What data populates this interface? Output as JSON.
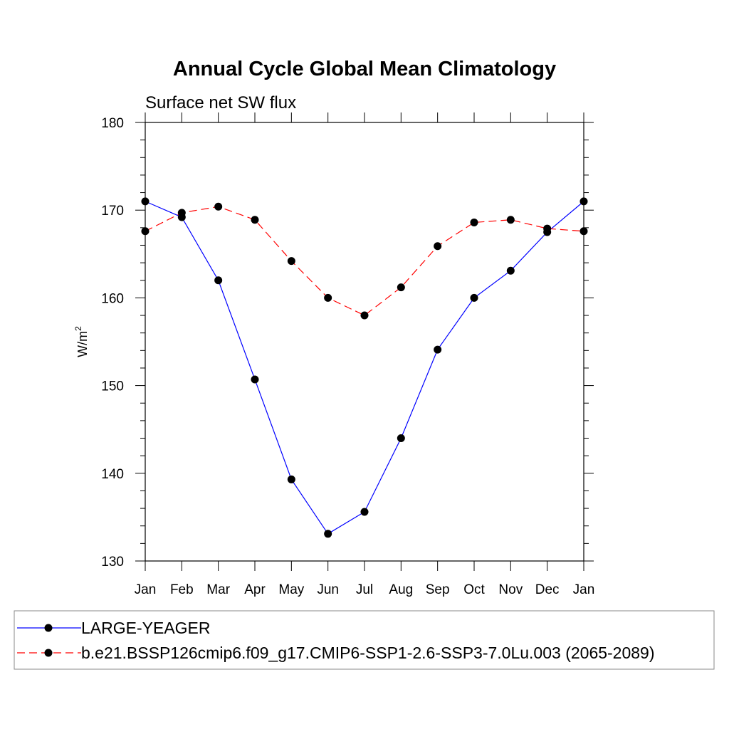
{
  "chart_data": {
    "type": "line",
    "title": "Annual Cycle Global Mean Climatology",
    "subtitle": "Surface net SW flux",
    "ylabel": "W/m",
    "ylabel_superscript": "2",
    "categories": [
      "Jan",
      "Feb",
      "Mar",
      "Apr",
      "May",
      "Jun",
      "Jul",
      "Aug",
      "Sep",
      "Oct",
      "Nov",
      "Dec",
      "Jan"
    ],
    "ylim": [
      130,
      180
    ],
    "yticks": [
      130,
      140,
      150,
      160,
      170,
      180
    ],
    "series": [
      {
        "name": "LARGE-YEAGER",
        "color": "#0000ff",
        "dash": "solid",
        "values": [
          171.0,
          169.2,
          162.0,
          150.7,
          139.3,
          133.1,
          135.6,
          144.0,
          154.1,
          160.0,
          163.1,
          167.5,
          171.0
        ]
      },
      {
        "name": "b.e21.BSSP126cmip6.f09_g17.CMIP6-SSP1-2.6-SSP3-7.0Lu.003 (2065-2089)",
        "color": "#ff0000",
        "dash": "dashed",
        "values": [
          167.6,
          169.7,
          170.4,
          168.9,
          164.2,
          160.0,
          158.0,
          161.2,
          165.9,
          168.6,
          168.9,
          167.9,
          167.6
        ]
      }
    ],
    "legend_position": "bottom",
    "grid": false
  }
}
